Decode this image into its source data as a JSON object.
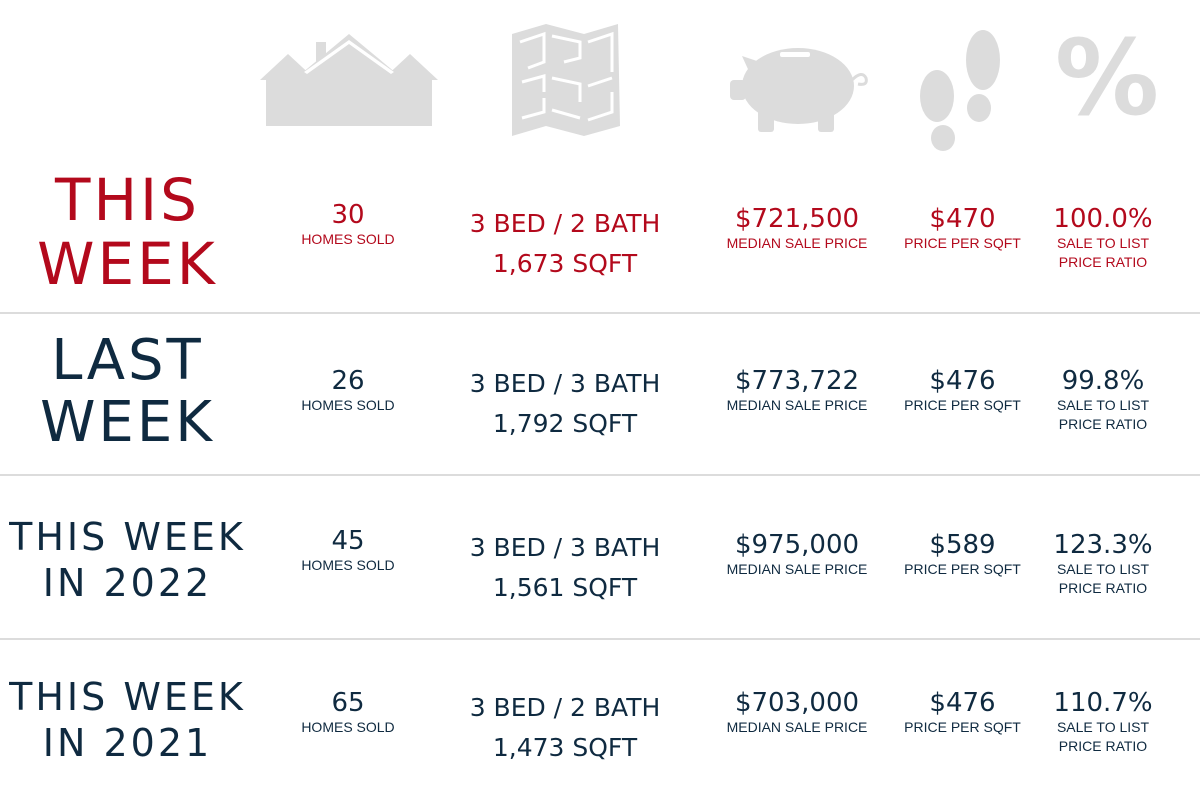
{
  "colors": {
    "accent": "#b3091c",
    "navy": "#0f2a40",
    "icon": "#dcdcdc",
    "divider": "#dcdcdc"
  },
  "icons": [
    "houses-icon",
    "floor-plan-icon",
    "piggy-bank-icon",
    "footprints-icon",
    "percent-icon"
  ],
  "percent_glyph": "%",
  "rows": [
    {
      "label": [
        "THIS",
        "WEEK"
      ],
      "homes": "30",
      "homes_label": "HOMES SOLD",
      "beds": "3 BED / 2 BATH",
      "sqft": "1,673 SQFT",
      "median": "$721,500",
      "median_label": "MEDIAN SALE PRICE",
      "ppsf": "$470",
      "ppsf_label": "PRICE PER SQFT",
      "ratio": "100.0%",
      "ratio_label_1": "SALE TO LIST",
      "ratio_label_2": "PRICE RATIO"
    },
    {
      "label": [
        "LAST",
        "WEEK"
      ],
      "homes": "26",
      "homes_label": "HOMES SOLD",
      "beds": "3 BED / 3 BATH",
      "sqft": "1,792 SQFT",
      "median": "$773,722",
      "median_label": "MEDIAN SALE PRICE",
      "ppsf": "$476",
      "ppsf_label": "PRICE PER SQFT",
      "ratio": "99.8%",
      "ratio_label_1": "SALE TO LIST",
      "ratio_label_2": "PRICE RATIO"
    },
    {
      "label": [
        "THIS WEEK",
        "IN 2022"
      ],
      "homes": "45",
      "homes_label": "HOMES SOLD",
      "beds": "3 BED / 3 BATH",
      "sqft": "1,561 SQFT",
      "median": "$975,000",
      "median_label": "MEDIAN SALE PRICE",
      "ppsf": "$589",
      "ppsf_label": "PRICE PER SQFT",
      "ratio": "123.3%",
      "ratio_label_1": "SALE TO LIST",
      "ratio_label_2": "PRICE RATIO"
    },
    {
      "label": [
        "THIS WEEK",
        "IN 2021"
      ],
      "homes": "65",
      "homes_label": "HOMES SOLD",
      "beds": "3 BED / 2 BATH",
      "sqft": "1,473 SQFT",
      "median": "$703,000",
      "median_label": "MEDIAN SALE PRICE",
      "ppsf": "$476",
      "ppsf_label": "PRICE PER SQFT",
      "ratio": "110.7%",
      "ratio_label_1": "SALE TO LIST",
      "ratio_label_2": "PRICE RATIO"
    }
  ]
}
